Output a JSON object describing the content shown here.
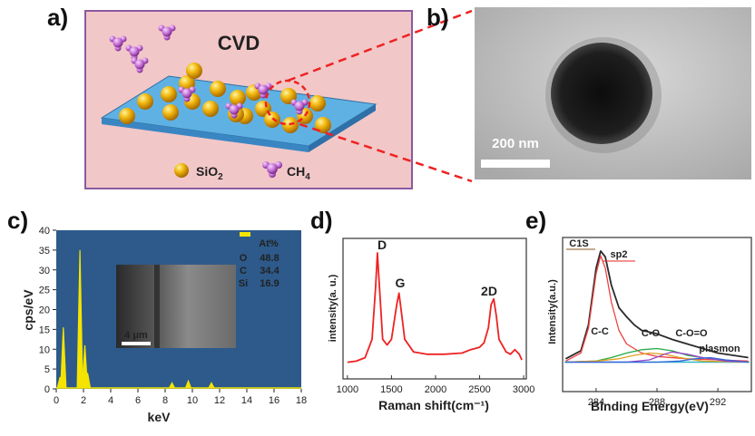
{
  "panels": {
    "a": {
      "label": "a)",
      "title": "CVD",
      "legend": {
        "item1": "SiO",
        "item1_sub": "2",
        "item2": "CH",
        "item2_sub": "4"
      }
    },
    "b": {
      "label": "b)",
      "scale_bar": "200 nm"
    },
    "c": {
      "label": "c)",
      "inset_scale": "4 μm"
    },
    "d": {
      "label": "d)"
    },
    "e": {
      "label": "e)"
    }
  },
  "colors": {
    "schematic_bg": "#f2c7c8",
    "schematic_border": "#8a5aa0",
    "substrate": "#4a9fd8",
    "eds_bg": "#2d5a8a",
    "eds_line": "#f4e400",
    "raman_line": "#ee2222",
    "dashed": "#ee2222"
  },
  "chart_data": [
    {
      "type": "bar",
      "panel": "c",
      "ylabel": "cps/eV",
      "xlabel": "keV",
      "xlim": [
        0,
        18
      ],
      "ylim": [
        0,
        40
      ],
      "xticks": [
        "0",
        "2",
        "4",
        "6",
        "8",
        "10",
        "12",
        "14",
        "16",
        "18"
      ],
      "yticks": [
        "0",
        "5",
        "10",
        "15",
        "20",
        "25",
        "30",
        "35",
        "40"
      ],
      "peaks": [
        {
          "x": 0.28,
          "y": 3
        },
        {
          "x": 0.52,
          "y": 15.5
        },
        {
          "x": 1.74,
          "y": 35
        },
        {
          "x": 2.1,
          "y": 11
        },
        {
          "x": 2.3,
          "y": 4
        },
        {
          "x": 8.5,
          "y": 1.5
        },
        {
          "x": 9.7,
          "y": 2
        },
        {
          "x": 11.4,
          "y": 1.5
        }
      ],
      "table": {
        "header": "At%",
        "rows": [
          {
            "element": "O",
            "value": "48.8"
          },
          {
            "element": "C",
            "value": "34.4"
          },
          {
            "element": "Si",
            "value": "16.9"
          }
        ]
      }
    },
    {
      "type": "line",
      "panel": "d",
      "xlabel": "Raman shift(cm⁻¹)",
      "ylabel": "intensity(a. u.)",
      "xlim": [
        950,
        3030
      ],
      "xticks": [
        "1000",
        "1500",
        "2000",
        "2500",
        "3000"
      ],
      "peak_labels": [
        "D",
        "G",
        "2D"
      ],
      "series": [
        {
          "x": [
            1000,
            1100,
            1200,
            1280,
            1320,
            1340,
            1360,
            1400,
            1450,
            1500,
            1560,
            1585,
            1610,
            1650,
            1750,
            1900,
            2100,
            2300,
            2400,
            2500,
            2550,
            2600,
            2630,
            2660,
            2690,
            2720,
            2800,
            2850,
            2900,
            2950,
            2980
          ],
          "y": [
            0.05,
            0.06,
            0.09,
            0.25,
            0.7,
            1.0,
            0.75,
            0.25,
            0.2,
            0.25,
            0.55,
            0.65,
            0.5,
            0.25,
            0.14,
            0.12,
            0.12,
            0.13,
            0.16,
            0.18,
            0.22,
            0.35,
            0.55,
            0.6,
            0.45,
            0.25,
            0.14,
            0.12,
            0.16,
            0.12,
            0.07
          ]
        }
      ]
    },
    {
      "type": "line",
      "panel": "e",
      "xlabel": "Binding Energy(eV)",
      "ylabel": "Intensity(a.u.)",
      "xlim": [
        281.8,
        294.2
      ],
      "xticks": [
        "284",
        "288",
        "292"
      ],
      "annotations": [
        "C1S",
        "sp2",
        "C-C",
        "C-O",
        "C-O=O",
        "plasmon"
      ],
      "series": [
        {
          "x": [
            282,
            283,
            283.5,
            284,
            284.3,
            284.6,
            285,
            285.5,
            286,
            286.5,
            287,
            288,
            289,
            290,
            291,
            292,
            293,
            294
          ],
          "y": [
            0.05,
            0.12,
            0.35,
            0.85,
            1.0,
            0.95,
            0.7,
            0.5,
            0.42,
            0.35,
            0.3,
            0.27,
            0.22,
            0.18,
            0.14,
            0.1,
            0.08,
            0.06
          ]
        },
        {
          "x": [
            282,
            283,
            283.5,
            284,
            284.3,
            284.6,
            285,
            285.5,
            286,
            287,
            288,
            290,
            292,
            294
          ],
          "y": [
            0.03,
            0.1,
            0.32,
            0.8,
            0.96,
            0.85,
            0.55,
            0.3,
            0.18,
            0.1,
            0.07,
            0.05,
            0.04,
            0.03
          ]
        },
        {
          "x": [
            282,
            284,
            285,
            286,
            287,
            288,
            289,
            290,
            292,
            294
          ],
          "y": [
            0.02,
            0.03,
            0.06,
            0.1,
            0.13,
            0.14,
            0.12,
            0.08,
            0.04,
            0.02
          ]
        },
        {
          "x": [
            282,
            284,
            285.5,
            286.5,
            287.5,
            288.5,
            289.5,
            291,
            294
          ],
          "y": [
            0.02,
            0.03,
            0.05,
            0.08,
            0.1,
            0.09,
            0.06,
            0.03,
            0.02
          ]
        },
        {
          "x": [
            282,
            286,
            287.5,
            288.5,
            289,
            290,
            291,
            292.5,
            294
          ],
          "y": [
            0.02,
            0.02,
            0.04,
            0.09,
            0.11,
            0.09,
            0.06,
            0.03,
            0.02
          ]
        },
        {
          "x": [
            282,
            288,
            289.5,
            290.5,
            291.5,
            292.5,
            294
          ],
          "y": [
            0.02,
            0.02,
            0.03,
            0.05,
            0.06,
            0.04,
            0.02
          ]
        }
      ]
    }
  ]
}
